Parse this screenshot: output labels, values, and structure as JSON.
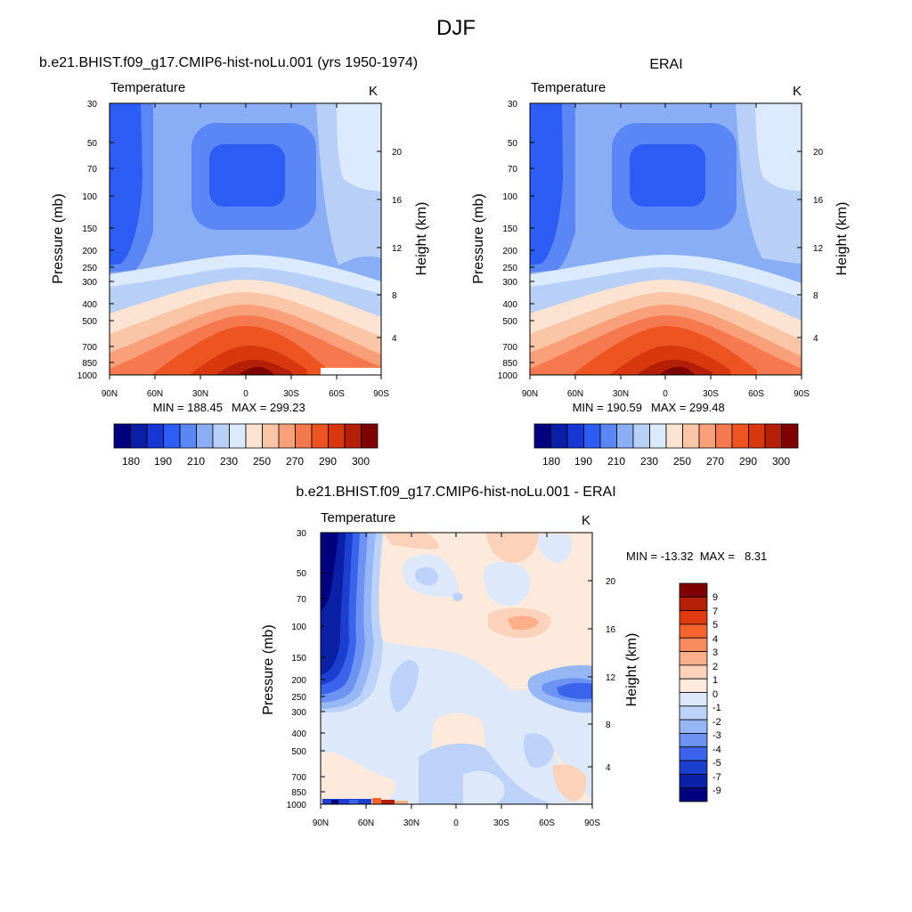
{
  "figure_title": "DJF",
  "chart_data": [
    {
      "type": "heatmap",
      "title": "b.e21.BHIST.f09_g17.CMIP6-hist-noLu.001 (yrs 1950-1974)",
      "variable": "Temperature",
      "units": "K",
      "xlabel": "",
      "ylabel": "Pressure (mb)",
      "right_ylabel": "Height (km)",
      "x_ticks": [
        "90N",
        "60N",
        "30N",
        "0",
        "30S",
        "60S",
        "90S"
      ],
      "y_ticks": [
        "30",
        "50",
        "70",
        "100",
        "150",
        "200",
        "250",
        "300",
        "400",
        "500",
        "700",
        "850",
        "1000"
      ],
      "right_ticks": [
        "20",
        "16",
        "12",
        "8",
        "4"
      ],
      "min_label": "MIN = 188.45",
      "max_label": "MAX = 299.23",
      "min": 188.45,
      "max": 299.23,
      "colorbar_labels": [
        "180",
        "190",
        "210",
        "230",
        "250",
        "270",
        "290",
        "300"
      ],
      "colorbar_colors": [
        "#00007f",
        "#0a1fa8",
        "#1736d4",
        "#2d5df5",
        "#5a87f5",
        "#8aaef5",
        "#b8d0f8",
        "#dceaff",
        "#fde4d2",
        "#fbc6a8",
        "#f9a07a",
        "#f5784e",
        "#ee5322",
        "#d9380e",
        "#b51f08",
        "#7f0000"
      ]
    },
    {
      "type": "heatmap",
      "title": "ERAI",
      "variable": "Temperature",
      "units": "K",
      "xlabel": "",
      "ylabel": "Pressure (mb)",
      "right_ylabel": "Height (km)",
      "x_ticks": [
        "90N",
        "60N",
        "30N",
        "0",
        "30S",
        "60S",
        "90S"
      ],
      "y_ticks": [
        "30",
        "50",
        "70",
        "100",
        "150",
        "200",
        "250",
        "300",
        "400",
        "500",
        "700",
        "850",
        "1000"
      ],
      "right_ticks": [
        "20",
        "16",
        "12",
        "8",
        "4"
      ],
      "min_label": "MIN = 190.59",
      "max_label": "MAX = 299.48",
      "min": 190.59,
      "max": 299.48,
      "colorbar_labels": [
        "180",
        "190",
        "210",
        "230",
        "250",
        "270",
        "290",
        "300"
      ],
      "colorbar_colors": [
        "#00007f",
        "#0a1fa8",
        "#1736d4",
        "#2d5df5",
        "#5a87f5",
        "#8aaef5",
        "#b8d0f8",
        "#dceaff",
        "#fde4d2",
        "#fbc6a8",
        "#f9a07a",
        "#f5784e",
        "#ee5322",
        "#d9380e",
        "#b51f08",
        "#7f0000"
      ]
    },
    {
      "type": "heatmap",
      "title": "b.e21.BHIST.f09_g17.CMIP6-hist-noLu.001 - ERAI",
      "variable": "Temperature",
      "units": "K",
      "xlabel": "",
      "ylabel": "Pressure (mb)",
      "right_ylabel": "Height (km)",
      "x_ticks": [
        "90N",
        "60N",
        "30N",
        "0",
        "30S",
        "60S",
        "90S"
      ],
      "y_ticks": [
        "30",
        "50",
        "70",
        "100",
        "150",
        "200",
        "250",
        "300",
        "400",
        "500",
        "700",
        "850",
        "1000"
      ],
      "right_ticks": [
        "20",
        "16",
        "12",
        "8",
        "4"
      ],
      "minmax_label": "MIN = -13.32  MAX =   8.31",
      "min": -13.32,
      "max": 8.31,
      "colorbar_labels": [
        "9",
        "7",
        "5",
        "4",
        "3",
        "2",
        "1",
        "0",
        "-1",
        "-2",
        "-3",
        "-4",
        "-5",
        "-7",
        "-9"
      ],
      "colorbar_colors": [
        "#7f0000",
        "#b51f08",
        "#e03a0e",
        "#f5642e",
        "#f98a5c",
        "#fbae8a",
        "#fdd2ba",
        "#fdeadc",
        "#dde9fb",
        "#bcd2f8",
        "#96b6f5",
        "#6c93f2",
        "#3b64ed",
        "#1c3fd0",
        "#0a20a6",
        "#00007f"
      ]
    }
  ]
}
